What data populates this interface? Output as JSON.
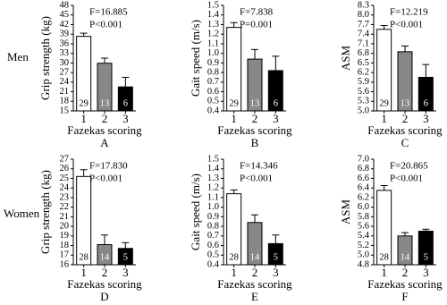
{
  "row_labels": [
    "Men",
    "Women"
  ],
  "chart_data": [
    {
      "type": "bar",
      "panel": "A",
      "ylabel": "Grip strength (kg)",
      "xlabel": "Fazekas scoring",
      "annotations": [
        "F=16.885",
        "P<0.001"
      ],
      "categories": [
        "1",
        "2",
        "3"
      ],
      "values": [
        38.3,
        29.9,
        22.5
      ],
      "errors": [
        1.0,
        1.6,
        3.0
      ],
      "n": [
        29,
        13,
        6
      ],
      "colors": [
        "#ffffff",
        "#888888",
        "#000000"
      ],
      "ylim": [
        15,
        48
      ],
      "yticks": [
        15,
        18,
        21,
        24,
        27,
        30,
        33,
        36,
        39,
        42,
        45,
        48
      ]
    },
    {
      "type": "bar",
      "panel": "B",
      "ylabel": "Gait speed (m/s)",
      "xlabel": "Fazekas scoring",
      "annotations": [
        "F=7.838",
        "P=0.001"
      ],
      "categories": [
        "1",
        "2",
        "3"
      ],
      "values": [
        1.27,
        0.94,
        0.82
      ],
      "errors": [
        0.05,
        0.1,
        0.15
      ],
      "n": [
        29,
        13,
        6
      ],
      "colors": [
        "#ffffff",
        "#888888",
        "#000000"
      ],
      "ylim": [
        0.4,
        1.5
      ],
      "yticks": [
        0.4,
        0.5,
        0.6,
        0.7,
        0.8,
        0.9,
        {
          "value": 1,
          "label": "1.0"
        },
        1.1,
        1.2,
        1.3,
        1.4,
        1.5
      ]
    },
    {
      "type": "bar",
      "panel": "C",
      "ylabel": "ASM",
      "xlabel": "Fazekas scoring",
      "annotations": [
        "F=12.219",
        "P<0.001"
      ],
      "categories": [
        "1",
        "2",
        "3"
      ],
      "values": [
        7.55,
        6.85,
        6.05
      ],
      "errors": [
        0.12,
        0.18,
        0.4
      ],
      "n": [
        29,
        13,
        6
      ],
      "colors": [
        "#ffffff",
        "#888888",
        "#000000"
      ],
      "ylim": [
        5.0,
        8.3
      ],
      "yticks": [
        {
          "value": 5,
          "label": "5.0"
        },
        5.3,
        5.6,
        5.9,
        6.2,
        6.5,
        6.8,
        7.1,
        7.4,
        7.7,
        {
          "value": 8,
          "label": "8.0"
        },
        8.3
      ]
    },
    {
      "type": "bar",
      "panel": "D",
      "ylabel": "Grip strength (kg)",
      "xlabel": "Fazekas scoring",
      "annotations": [
        "F=17.830",
        "P<0.001"
      ],
      "categories": [
        "1",
        "2",
        "3"
      ],
      "values": [
        25.2,
        18.1,
        17.7
      ],
      "errors": [
        0.7,
        1.0,
        0.6
      ],
      "n": [
        28,
        14,
        5
      ],
      "colors": [
        "#ffffff",
        "#888888",
        "#000000"
      ],
      "ylim": [
        16,
        27
      ],
      "yticks": [
        16,
        17,
        18,
        19,
        20,
        21,
        22,
        23,
        24,
        25,
        26,
        27
      ]
    },
    {
      "type": "bar",
      "panel": "E",
      "ylabel": "Gait speed (m/s)",
      "xlabel": "Fazekas scoring",
      "annotations": [
        "F=14.346",
        "P<0.001"
      ],
      "categories": [
        "1",
        "2",
        "3"
      ],
      "values": [
        1.14,
        0.84,
        0.62
      ],
      "errors": [
        0.04,
        0.08,
        0.09
      ],
      "n": [
        28,
        14,
        5
      ],
      "colors": [
        "#ffffff",
        "#888888",
        "#000000"
      ],
      "ylim": [
        0.4,
        1.5
      ],
      "yticks": [
        0.4,
        0.5,
        0.6,
        0.7,
        0.8,
        0.9,
        {
          "value": 1,
          "label": "1.0"
        },
        1.1,
        1.2,
        1.3,
        1.4,
        1.5
      ]
    },
    {
      "type": "bar",
      "panel": "F",
      "ylabel": "ASM",
      "xlabel": "Fazekas scoring",
      "annotations": [
        "F=20.865",
        "P<0.001"
      ],
      "categories": [
        "1",
        "2",
        "3"
      ],
      "values": [
        6.35,
        5.4,
        5.5
      ],
      "errors": [
        0.1,
        0.07,
        0.04
      ],
      "n": [
        28,
        14,
        5
      ],
      "colors": [
        "#ffffff",
        "#888888",
        "#000000"
      ],
      "ylim": [
        4.8,
        7.0
      ],
      "yticks": [
        4.8,
        {
          "value": 5,
          "label": "5.0"
        },
        5.2,
        5.4,
        5.6,
        5.8,
        {
          "value": 6,
          "label": "6.0"
        },
        6.2,
        6.4,
        6.6,
        6.8,
        {
          "value": 7,
          "label": "7.0"
        }
      ]
    }
  ]
}
